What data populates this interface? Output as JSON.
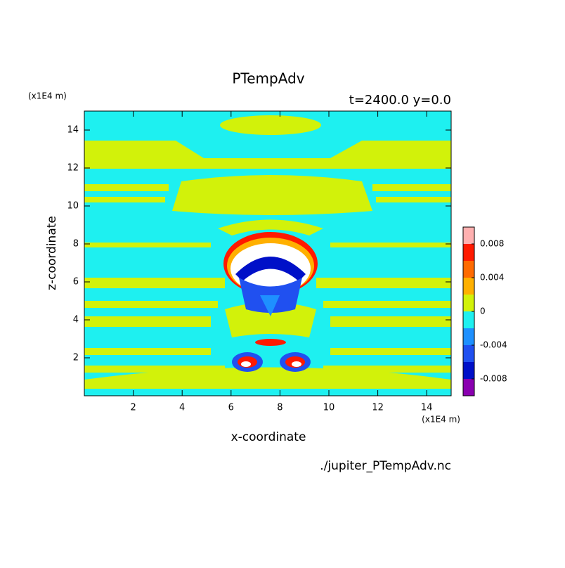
{
  "chart_data": {
    "type": "contour",
    "title": "PTempAdv",
    "subtitle": "t=2400.0 y=0.0",
    "xlabel": "x-coordinate",
    "ylabel": "z-coordinate",
    "x_unit": "(x1E4 m)",
    "y_unit": "(x1E4 m)",
    "footer": "./jupiter_PTempAdv.nc",
    "xlim": [
      0,
      15
    ],
    "xticks": [
      2,
      4,
      6,
      8,
      10,
      12,
      14
    ],
    "ylim": [
      0,
      15
    ],
    "yticks": [
      2,
      4,
      6,
      8,
      10,
      12,
      14
    ],
    "colorbar": {
      "levels": [
        -0.01,
        -0.008,
        -0.006,
        -0.004,
        -0.002,
        0,
        0.002,
        0.004,
        0.006,
        0.008,
        0.01
      ],
      "colors": [
        "#8a00b0",
        "#0010c8",
        "#2050f0",
        "#1e90ff",
        "#1ef0f0",
        "#d2f20a",
        "#ffb000",
        "#ff6a00",
        "#ff1a00",
        "#ffb0b0"
      ],
      "ticks": [
        -0.008,
        -0.004,
        0,
        0.004,
        0.008
      ]
    }
  }
}
